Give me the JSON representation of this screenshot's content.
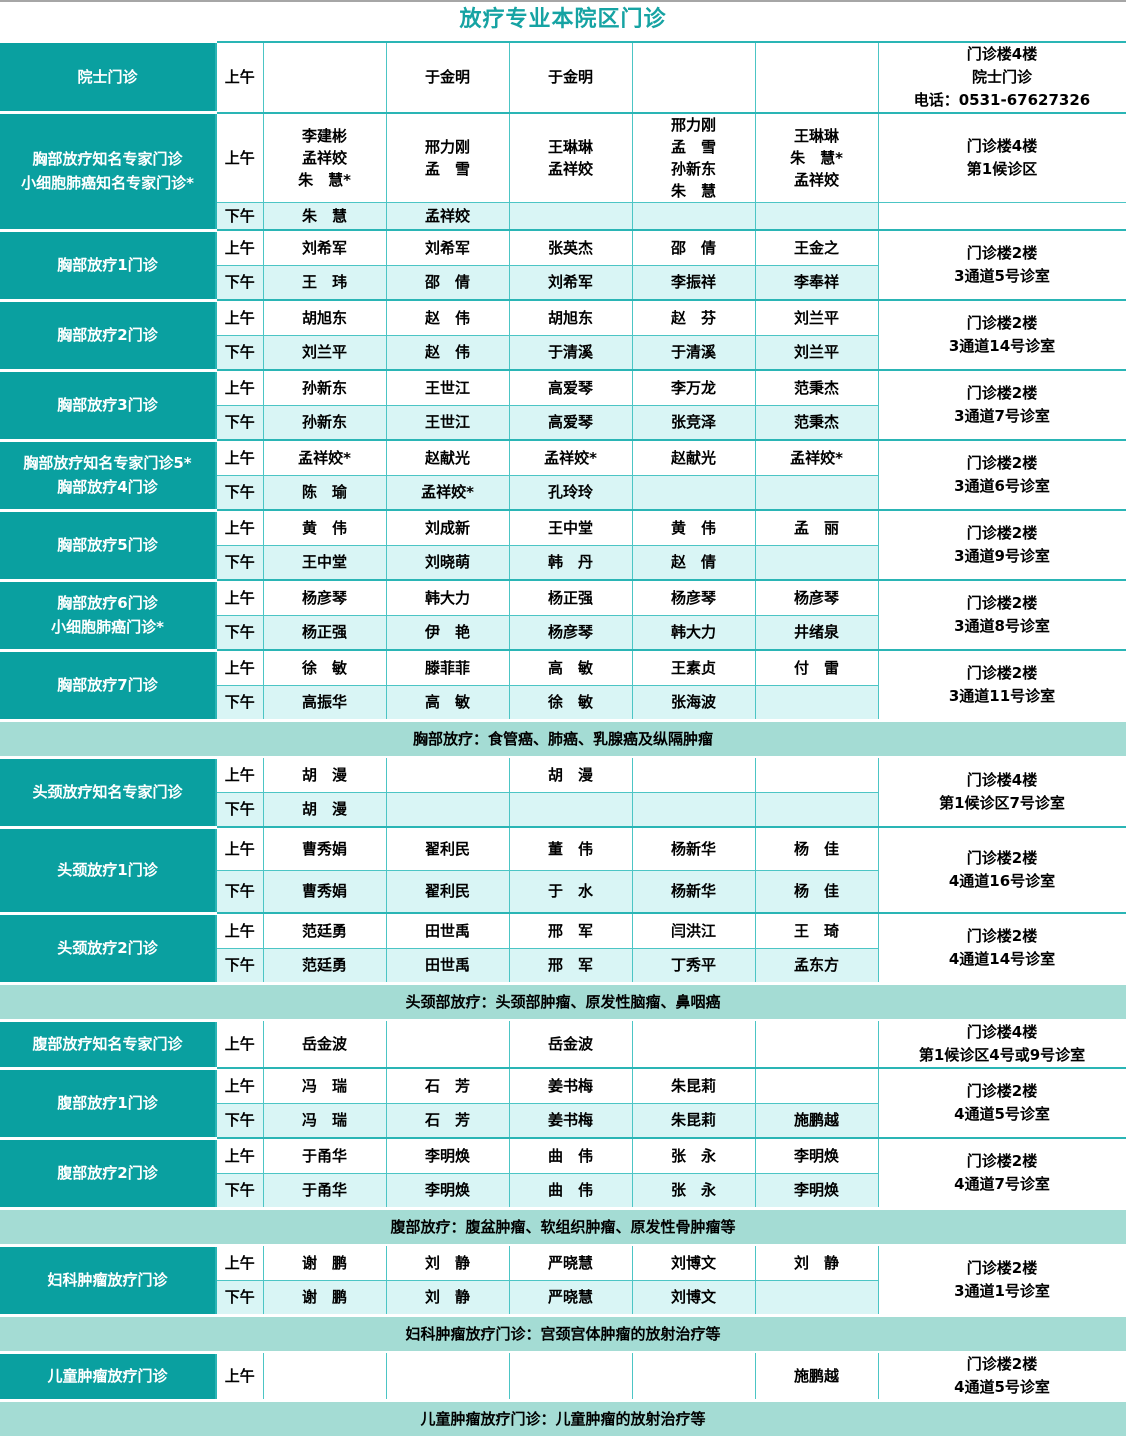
{
  "title": "放疗专业本院区门诊",
  "colors": {
    "dept_teal": "#0aa0a0",
    "title_teal": "#16a3a3",
    "afternoon_bg": "#d9f5f5",
    "separator_bg": "#a4dcd4",
    "grid_border": "#4cc5c5"
  },
  "schedule": [
    {
      "type": "group",
      "dept": "院士门诊",
      "location": "门诊楼4楼\n院士门诊\n电话：0531-67627326",
      "sessions": [
        {
          "label": "上午",
          "cells": [
            "",
            "于金明",
            "于金明",
            "",
            ""
          ]
        }
      ]
    },
    {
      "type": "group",
      "dept": "胸部放疗知名专家门诊\n小细胞肺癌知名专家门诊*",
      "location": "门诊楼4楼\n第1候诊区",
      "split_location": true,
      "sessions": [
        {
          "label": "上午",
          "cells": [
            "李建彬\n孟祥姣\n朱　慧*",
            "邢力刚\n孟　雪",
            "王琳琳\n孟祥姣",
            "邢力刚\n孟　雪\n孙新东\n朱　慧",
            "王琳琳\n朱　慧*\n孟祥姣"
          ]
        },
        {
          "label": "下午",
          "cells": [
            "朱　慧",
            "孟祥姣",
            "",
            "",
            ""
          ]
        }
      ]
    },
    {
      "type": "group",
      "dept": "胸部放疗1门诊",
      "location": "门诊楼2楼\n3通道5号诊室",
      "sessions": [
        {
          "label": "上午",
          "cells": [
            "刘希军",
            "刘希军",
            "张英杰",
            "邵　倩",
            "王金之"
          ]
        },
        {
          "label": "下午",
          "cells": [
            "王　玮",
            "邵　倩",
            "刘希军",
            "李振祥",
            "李奉祥"
          ]
        }
      ]
    },
    {
      "type": "group",
      "dept": "胸部放疗2门诊",
      "location": "门诊楼2楼\n3通道14号诊室",
      "sessions": [
        {
          "label": "上午",
          "cells": [
            "胡旭东",
            "赵　伟",
            "胡旭东",
            "赵　芬",
            "刘兰平"
          ]
        },
        {
          "label": "下午",
          "cells": [
            "刘兰平",
            "赵　伟",
            "于清溪",
            "于清溪",
            "刘兰平"
          ]
        }
      ]
    },
    {
      "type": "group",
      "dept": "胸部放疗3门诊",
      "location": "门诊楼2楼\n3通道7号诊室",
      "sessions": [
        {
          "label": "上午",
          "cells": [
            "孙新东",
            "王世江",
            "高爱琴",
            "李万龙",
            "范秉杰"
          ]
        },
        {
          "label": "下午",
          "cells": [
            "孙新东",
            "王世江",
            "高爱琴",
            "张竞泽",
            "范秉杰"
          ]
        }
      ]
    },
    {
      "type": "group",
      "dept": "胸部放疗知名专家门诊5*\n胸部放疗4门诊",
      "location": "门诊楼2楼\n3通道6号诊室",
      "sessions": [
        {
          "label": "上午",
          "cells": [
            "孟祥姣*",
            "赵献光",
            "孟祥姣*",
            "赵献光",
            "孟祥姣*"
          ]
        },
        {
          "label": "下午",
          "cells": [
            "陈　瑜",
            "孟祥姣*",
            "孔玲玲",
            "",
            ""
          ]
        }
      ]
    },
    {
      "type": "group",
      "dept": "胸部放疗5门诊",
      "location": "门诊楼2楼\n3通道9号诊室",
      "sessions": [
        {
          "label": "上午",
          "cells": [
            "黄　伟",
            "刘成新",
            "王中堂",
            "黄　伟",
            "孟　丽"
          ]
        },
        {
          "label": "下午",
          "cells": [
            "王中堂",
            "刘晓萌",
            "韩　丹",
            "赵　倩",
            ""
          ]
        }
      ]
    },
    {
      "type": "group",
      "dept": "胸部放疗6门诊\n小细胞肺癌门诊*",
      "location": "门诊楼2楼\n3通道8号诊室",
      "sessions": [
        {
          "label": "上午",
          "cells": [
            "杨彦琴",
            "韩大力",
            "杨正强",
            "杨彦琴",
            "杨彦琴"
          ]
        },
        {
          "label": "下午",
          "cells": [
            "杨正强",
            "伊　艳",
            "杨彦琴",
            "韩大力",
            "井绪泉"
          ]
        }
      ]
    },
    {
      "type": "group",
      "dept": "胸部放疗7门诊",
      "location": "门诊楼2楼\n3通道11号诊室",
      "sessions": [
        {
          "label": "上午",
          "cells": [
            "徐　敏",
            "滕菲菲",
            "高　敏",
            "王素贞",
            "付　雷"
          ]
        },
        {
          "label": "下午",
          "cells": [
            "高振华",
            "高　敏",
            "徐　敏",
            "张海波",
            ""
          ]
        }
      ]
    },
    {
      "type": "separator",
      "text": "胸部放疗：食管癌、肺癌、乳腺癌及纵隔肿瘤"
    },
    {
      "type": "group",
      "dept": "头颈放疗知名专家门诊",
      "location": "门诊楼4楼\n第1候诊区7号诊室",
      "sessions": [
        {
          "label": "上午",
          "cells": [
            "胡　漫",
            "",
            "胡　漫",
            "",
            ""
          ]
        },
        {
          "label": "下午",
          "cells": [
            "胡　漫",
            "",
            "",
            "",
            ""
          ]
        }
      ]
    },
    {
      "type": "group",
      "dept": "头颈放疗1门诊",
      "location": "门诊楼2楼\n4通道16号诊室",
      "sessions": [
        {
          "label": "上午",
          "cells": [
            "曹秀娟",
            "翟利民",
            "董　伟",
            "杨新华",
            "杨　佳"
          ]
        },
        {
          "label": "下午",
          "cells": [
            "曹秀娟",
            "翟利民",
            "于　水",
            "杨新华",
            "杨　佳"
          ]
        }
      ]
    },
    {
      "type": "group",
      "dept": "头颈放疗2门诊",
      "location": "门诊楼2楼\n4通道14号诊室",
      "sessions": [
        {
          "label": "上午",
          "cells": [
            "范廷勇",
            "田世禹",
            "邢　军",
            "闫洪江",
            "王　琦"
          ]
        },
        {
          "label": "下午",
          "cells": [
            "范廷勇",
            "田世禹",
            "邢　军",
            "丁秀平",
            "孟东方"
          ]
        }
      ]
    },
    {
      "type": "separator",
      "text": "头颈部放疗：头颈部肿瘤、原发性脑瘤、鼻咽癌"
    },
    {
      "type": "group",
      "dept": "腹部放疗知名专家门诊",
      "location": "门诊楼4楼\n第1候诊区4号或9号诊室",
      "sessions": [
        {
          "label": "上午",
          "cells": [
            "岳金波",
            "",
            "岳金波",
            "",
            ""
          ]
        }
      ]
    },
    {
      "type": "group",
      "dept": "腹部放疗1门诊",
      "location": "门诊楼2楼\n4通道5号诊室",
      "sessions": [
        {
          "label": "上午",
          "cells": [
            "冯　瑞",
            "石　芳",
            "姜书梅",
            "朱昆莉",
            ""
          ]
        },
        {
          "label": "下午",
          "cells": [
            "冯　瑞",
            "石　芳",
            "姜书梅",
            "朱昆莉",
            "施鹏越"
          ]
        }
      ]
    },
    {
      "type": "group",
      "dept": "腹部放疗2门诊",
      "location": "门诊楼2楼\n4通道7号诊室",
      "sessions": [
        {
          "label": "上午",
          "cells": [
            "于甬华",
            "李明焕",
            "曲　伟",
            "张　永",
            "李明焕"
          ]
        },
        {
          "label": "下午",
          "cells": [
            "于甬华",
            "李明焕",
            "曲　伟",
            "张　永",
            "李明焕"
          ]
        }
      ]
    },
    {
      "type": "separator",
      "text": "腹部放疗：腹盆肿瘤、软组织肿瘤、原发性骨肿瘤等"
    },
    {
      "type": "group",
      "dept": "妇科肿瘤放疗门诊",
      "location": "门诊楼2楼\n3通道1号诊室",
      "sessions": [
        {
          "label": "上午",
          "cells": [
            "谢　鹏",
            "刘　静",
            "严晓慧",
            "刘博文",
            "刘　静"
          ]
        },
        {
          "label": "下午",
          "cells": [
            "谢　鹏",
            "刘　静",
            "严晓慧",
            "刘博文",
            ""
          ]
        }
      ]
    },
    {
      "type": "separator",
      "text": "妇科肿瘤放疗门诊：宫颈宫体肿瘤的放射治疗等"
    },
    {
      "type": "group",
      "dept": "儿童肿瘤放疗门诊",
      "location": "门诊楼2楼\n4通道5号诊室",
      "sessions": [
        {
          "label": "上午",
          "cells": [
            "",
            "",
            "",
            "",
            "施鹏越"
          ]
        }
      ]
    },
    {
      "type": "separator",
      "text": "儿童肿瘤放疗门诊：儿童肿瘤的放射治疗等"
    }
  ]
}
